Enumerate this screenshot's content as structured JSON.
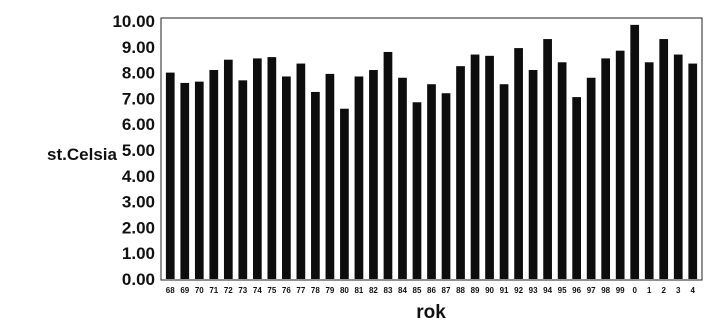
{
  "chart_data": {
    "type": "bar",
    "xlabel": "rok",
    "ylabel": "st.Celsia",
    "ylim": [
      0,
      10
    ],
    "yticks": [
      "0.00",
      "1.00",
      "2.00",
      "3.00",
      "4.00",
      "5.00",
      "6.00",
      "7.00",
      "8.00",
      "9.00",
      "10.00"
    ],
    "grid": false,
    "legend": "none",
    "bar_color": "#0d0d0d",
    "categories": [
      "68",
      "69",
      "70",
      "71",
      "72",
      "73",
      "74",
      "75",
      "76",
      "77",
      "78",
      "79",
      "80",
      "81",
      "82",
      "83",
      "84",
      "85",
      "86",
      "87",
      "88",
      "89",
      "90",
      "91",
      "92",
      "93",
      "94",
      "95",
      "96",
      "97",
      "98",
      "99",
      "0",
      "1",
      "2",
      "3",
      "4"
    ],
    "values": [
      8.0,
      7.6,
      7.65,
      8.1,
      8.5,
      7.7,
      8.55,
      8.6,
      7.85,
      8.35,
      7.25,
      7.95,
      6.6,
      7.85,
      8.1,
      8.8,
      7.8,
      6.85,
      7.55,
      7.2,
      8.25,
      8.7,
      8.65,
      7.55,
      8.95,
      8.1,
      9.3,
      8.4,
      7.05,
      7.8,
      8.55,
      8.85,
      9.85,
      8.4,
      9.3,
      8.7,
      8.35
    ]
  }
}
